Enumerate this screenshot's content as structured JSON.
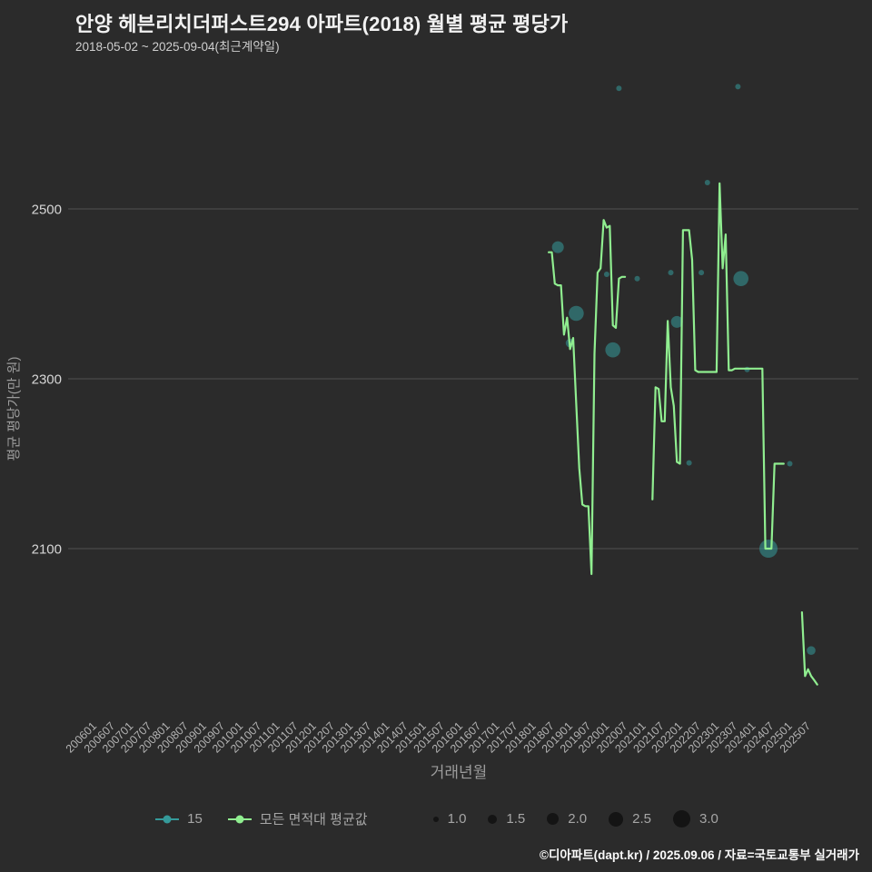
{
  "chart_data": {
    "type": "line",
    "title": "안양 헤븐리치더퍼스트294 아파트(2018) 월별 평균 평당가",
    "subtitle": "2018-05-02 ~ 2025-09-04(최근계약일)",
    "xlabel": "거래년월",
    "ylabel": "평균 평당가(만 원)",
    "y_ticks": [
      2100,
      2300,
      2500
    ],
    "y_range": [
      1895,
      2655
    ],
    "grid": "horizontal",
    "background": "#2b2b2b",
    "x_tick_labels": [
      "200601",
      "200607",
      "200701",
      "200707",
      "200801",
      "200807",
      "200901",
      "200907",
      "201001",
      "201007",
      "201101",
      "201107",
      "201201",
      "201207",
      "201301",
      "201307",
      "201401",
      "201407",
      "201501",
      "201507",
      "201601",
      "201607",
      "201701",
      "201707",
      "201801",
      "201807",
      "201901",
      "201907",
      "202001",
      "202007",
      "202101",
      "202107",
      "202201",
      "202207",
      "202301",
      "202307",
      "202401",
      "202407",
      "202501",
      "202507"
    ],
    "line_series": {
      "name": "모든 면적대 평균값",
      "color": "#90ee90",
      "segments": [
        [
          [
            "201805",
            2449
          ],
          [
            "201806",
            2449
          ],
          [
            "201807",
            2412
          ],
          [
            "201808",
            2410
          ],
          [
            "201809",
            2410
          ],
          [
            "201810",
            2352
          ],
          [
            "201811",
            2372
          ],
          [
            "201812",
            2335
          ],
          [
            "201901",
            2348
          ],
          [
            "201902",
            2270
          ],
          [
            "201903",
            2195
          ],
          [
            "201904",
            2152
          ],
          [
            "201905",
            2150
          ],
          [
            "201906",
            2150
          ],
          [
            "201907",
            2070
          ],
          [
            "201908",
            2330
          ],
          [
            "201909",
            2425
          ],
          [
            "201910",
            2430
          ],
          [
            "201911",
            2487
          ],
          [
            "201912",
            2478
          ],
          [
            "202001",
            2480
          ],
          [
            "202002",
            2363
          ],
          [
            "202003",
            2360
          ],
          [
            "202004",
            2418
          ],
          [
            "202005",
            2420
          ],
          [
            "202006",
            2420
          ]
        ],
        [
          [
            "202103",
            2158
          ],
          [
            "202104",
            2290
          ],
          [
            "202105",
            2288
          ],
          [
            "202106",
            2250
          ],
          [
            "202107",
            2250
          ],
          [
            "202108",
            2368
          ],
          [
            "202109",
            2290
          ],
          [
            "202110",
            2268
          ],
          [
            "202111",
            2202
          ],
          [
            "202112",
            2200
          ],
          [
            "202201",
            2475
          ],
          [
            "202202",
            2475
          ],
          [
            "202203",
            2475
          ],
          [
            "202204",
            2440
          ],
          [
            "202205",
            2310
          ],
          [
            "202206",
            2308
          ],
          [
            "202207",
            2308
          ],
          [
            "202208",
            2308
          ],
          [
            "202209",
            2308
          ],
          [
            "202210",
            2308
          ],
          [
            "202211",
            2308
          ],
          [
            "202212",
            2308
          ],
          [
            "202301",
            2530
          ],
          [
            "202302",
            2430
          ],
          [
            "202303",
            2470
          ],
          [
            "202304",
            2310
          ],
          [
            "202305",
            2310
          ],
          [
            "202306",
            2312
          ],
          [
            "202307",
            2312
          ],
          [
            "202308",
            2312
          ],
          [
            "202309",
            2312
          ],
          [
            "202310",
            2312
          ],
          [
            "202311",
            2312
          ],
          [
            "202312",
            2312
          ],
          [
            "202401",
            2312
          ],
          [
            "202402",
            2312
          ],
          [
            "202403",
            2312
          ],
          [
            "202404",
            2100
          ],
          [
            "202405",
            2100
          ],
          [
            "202406",
            2100
          ],
          [
            "202407",
            2200
          ],
          [
            "202408",
            2200
          ],
          [
            "202409",
            2200
          ],
          [
            "202410",
            2200
          ]
        ],
        [
          [
            "202504",
            2025
          ],
          [
            "202505",
            1950
          ],
          [
            "202506",
            1958
          ],
          [
            "202507",
            1950
          ],
          [
            "202508",
            1945
          ],
          [
            "202509",
            1940
          ]
        ]
      ]
    },
    "scatter_series": {
      "name": "15",
      "color": "#359a9a",
      "opacity": 0.55,
      "points": [
        [
          "201808",
          2455,
          2.0
        ],
        [
          "201812",
          2342,
          1.5
        ],
        [
          "201902",
          2377,
          2.5
        ],
        [
          "201912",
          2423,
          1.0
        ],
        [
          "202002",
          2334,
          2.5
        ],
        [
          "202004",
          2642,
          1.0
        ],
        [
          "202010",
          2418,
          1.0
        ],
        [
          "202109",
          2425,
          1.0
        ],
        [
          "202111",
          2367,
          2.0
        ],
        [
          "202203",
          2201,
          1.0
        ],
        [
          "202207",
          2425,
          1.0
        ],
        [
          "202209",
          2531,
          1.0
        ],
        [
          "202307",
          2644,
          1.0
        ],
        [
          "202308",
          2418,
          2.5
        ],
        [
          "202310",
          2311,
          1.0
        ],
        [
          "202405",
          2100,
          3.0
        ],
        [
          "202412",
          2200,
          1.0
        ],
        [
          "202507",
          1980,
          1.5
        ]
      ]
    }
  },
  "legend": {
    "sizes": {
      "labels": [
        "1.0",
        "1.5",
        "2.0",
        "2.5",
        "3.0"
      ],
      "dot_color": "#141414"
    }
  },
  "footer": {
    "credit": "©디아파트(dapt.kr) / 2025.09.06 / 자료=국토교통부 실거래가"
  }
}
